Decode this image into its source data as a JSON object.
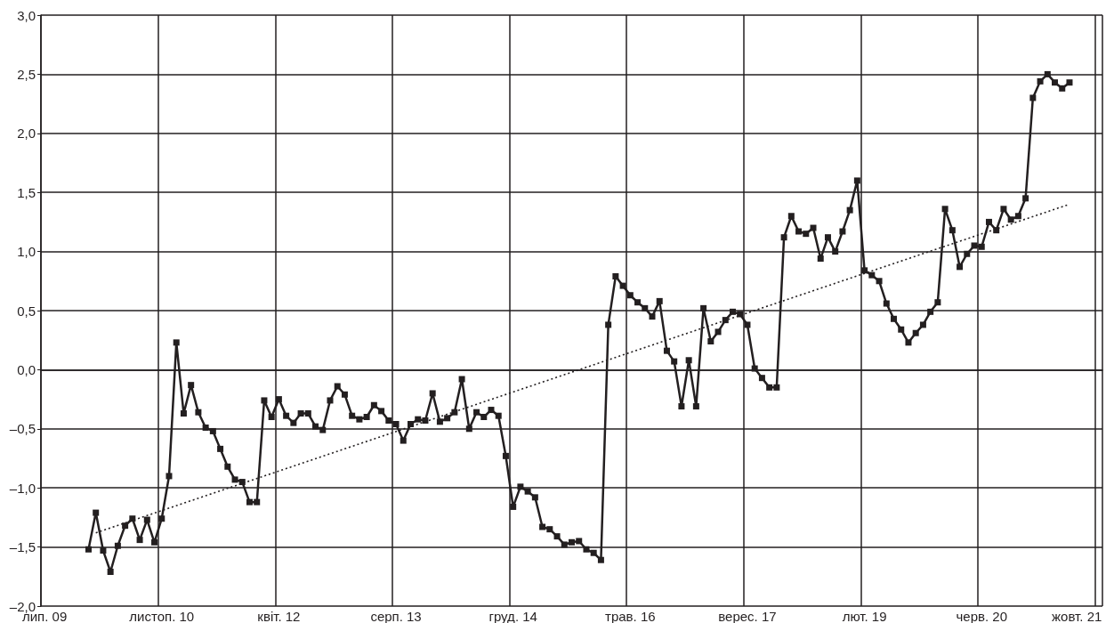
{
  "chart_data": {
    "type": "line",
    "categories": [
      "лип. 09",
      null,
      null,
      null,
      null,
      null,
      null,
      null,
      null,
      null,
      null,
      null,
      null,
      null,
      null,
      null,
      "листоп. 10",
      null,
      null,
      null,
      null,
      null,
      null,
      null,
      null,
      null,
      null,
      null,
      null,
      null,
      null,
      null,
      "квіт. 12",
      null,
      null,
      null,
      null,
      null,
      null,
      null,
      null,
      null,
      null,
      null,
      null,
      null,
      null,
      null,
      "серп. 13",
      null,
      null,
      null,
      null,
      null,
      null,
      null,
      null,
      null,
      null,
      null,
      null,
      null,
      null,
      null,
      "груд. 14",
      null,
      null,
      null,
      null,
      null,
      null,
      null,
      null,
      null,
      null,
      null,
      null,
      null,
      null,
      null,
      "трав. 16",
      null,
      null,
      null,
      null,
      null,
      null,
      null,
      null,
      null,
      null,
      null,
      null,
      null,
      null,
      null,
      "верес. 17",
      null,
      null,
      null,
      null,
      null,
      null,
      null,
      null,
      null,
      null,
      null,
      null,
      null,
      null,
      null,
      "лют. 19",
      null,
      null,
      null,
      null,
      null,
      null,
      null,
      null,
      null,
      null,
      null,
      null,
      null,
      null,
      null,
      "черв. 20",
      null,
      null,
      null,
      null,
      null,
      null,
      null,
      null,
      null,
      null,
      null,
      null,
      "жовт. 21",
      null,
      null,
      null
    ],
    "series": [
      {
        "color": "#231f20",
        "marker": "square",
        "values": [
          null,
          null,
          null,
          null,
          null,
          null,
          -1.52,
          -1.21,
          -1.53,
          -1.71,
          -1.49,
          -1.32,
          -1.26,
          -1.44,
          -1.27,
          -1.46,
          -1.26,
          -0.9,
          0.23,
          -0.37,
          -0.13,
          -0.36,
          -0.49,
          -0.52,
          -0.67,
          -0.82,
          -0.93,
          -0.95,
          -1.12,
          -1.12,
          -0.26,
          -0.4,
          -0.25,
          -0.39,
          -0.45,
          -0.37,
          -0.37,
          -0.48,
          -0.51,
          -0.26,
          -0.14,
          -0.21,
          -0.39,
          -0.42,
          -0.4,
          -0.3,
          -0.35,
          -0.43,
          -0.46,
          -0.6,
          -0.46,
          -0.42,
          -0.43,
          -0.2,
          -0.44,
          -0.41,
          -0.36,
          -0.08,
          -0.5,
          -0.36,
          -0.4,
          -0.34,
          -0.39,
          -0.73,
          -1.16,
          -0.99,
          -1.03,
          -1.08,
          -1.33,
          -1.35,
          -1.41,
          -1.48,
          -1.46,
          -1.45,
          -1.52,
          -1.55,
          -1.61,
          0.38,
          0.79,
          0.71,
          0.63,
          0.57,
          0.52,
          0.45,
          0.58,
          0.16,
          0.07,
          -0.31,
          0.08,
          -0.31,
          0.52,
          0.24,
          0.32,
          0.42,
          0.49,
          0.47,
          0.38,
          0.01,
          -0.07,
          -0.15,
          -0.15,
          1.12,
          1.3,
          1.17,
          1.15,
          1.2,
          0.94,
          1.12,
          1.0,
          1.17,
          1.35,
          1.6,
          0.84,
          0.8,
          0.75,
          0.56,
          0.43,
          0.34,
          0.23,
          0.31,
          0.38,
          0.49,
          0.57,
          1.36,
          1.18,
          0.87,
          0.98,
          1.05,
          1.04,
          1.25,
          1.18,
          1.36,
          1.27,
          1.3,
          1.45,
          2.3,
          2.44,
          2.5,
          2.43,
          2.38,
          2.43,
          null,
          null,
          null,
          null
        ]
      },
      {
        "type": "line",
        "color": "#231f20",
        "marker": "none",
        "line_style": "dotted",
        "values": [
          null,
          null,
          null,
          null,
          null,
          null,
          null,
          -1.38,
          null,
          null,
          null,
          null,
          null,
          null,
          null,
          null,
          null,
          null,
          null,
          null,
          null,
          null,
          null,
          null,
          null,
          null,
          null,
          null,
          null,
          null,
          null,
          null,
          null,
          null,
          null,
          null,
          null,
          null,
          null,
          null,
          null,
          null,
          null,
          null,
          null,
          null,
          null,
          null,
          null,
          null,
          null,
          null,
          null,
          null,
          null,
          null,
          null,
          null,
          null,
          null,
          null,
          null,
          null,
          null,
          null,
          null,
          null,
          null,
          null,
          null,
          null,
          null,
          null,
          null,
          null,
          null,
          null,
          null,
          null,
          null,
          null,
          null,
          null,
          null,
          null,
          null,
          null,
          null,
          null,
          null,
          null,
          null,
          null,
          null,
          null,
          null,
          null,
          null,
          null,
          null,
          null,
          null,
          null,
          null,
          null,
          null,
          null,
          null,
          null,
          null,
          null,
          null,
          null,
          null,
          null,
          null,
          null,
          null,
          null,
          null,
          null,
          null,
          null,
          null,
          null,
          null,
          null,
          null,
          null,
          null,
          null,
          null,
          null,
          null,
          null,
          null,
          null,
          null,
          null,
          null,
          1.4,
          null,
          null,
          null,
          null
        ]
      }
    ],
    "ylim": [
      -2,
      3
    ],
    "yticks": [
      {
        "value": -2,
        "label": "–2,0"
      },
      {
        "value": -1.5,
        "label": "–1,5"
      },
      {
        "value": -1,
        "label": "–1,0"
      },
      {
        "value": -0.5,
        "label": "–0,5"
      },
      {
        "value": 0,
        "label": "0,0"
      },
      {
        "value": 0.5,
        "label": "0,5"
      },
      {
        "value": 1,
        "label": "1,0"
      },
      {
        "value": 1.5,
        "label": "1,5"
      },
      {
        "value": 2,
        "label": "2,0"
      },
      {
        "value": 2.5,
        "label": "2,5"
      },
      {
        "value": 3,
        "label": "3,0"
      }
    ],
    "grid": true,
    "line_style": "solid"
  }
}
